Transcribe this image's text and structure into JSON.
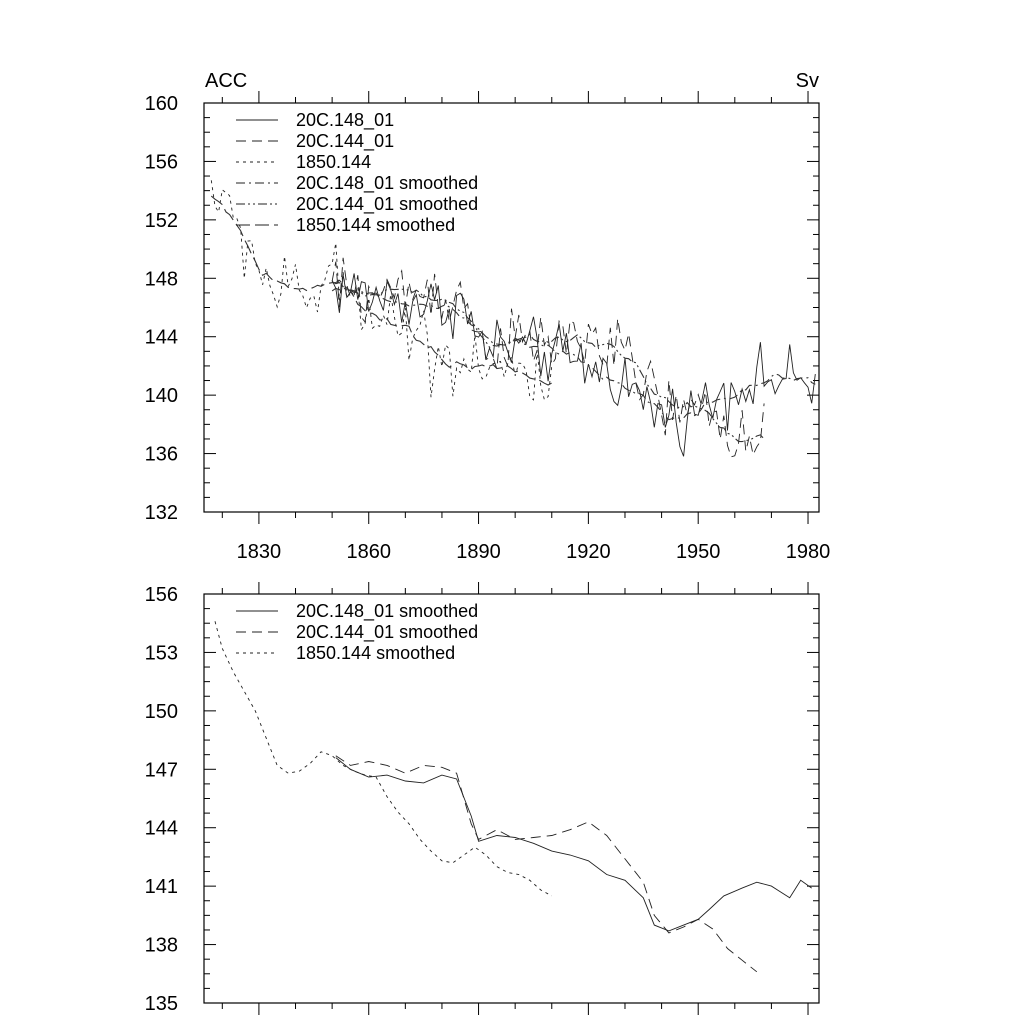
{
  "chart_data": [
    {
      "type": "line",
      "title_left": "ACC",
      "title_right": "Sv",
      "xlim": [
        1815,
        1983
      ],
      "ylim": [
        132,
        160
      ],
      "x_ticks": [
        1830,
        1860,
        1890,
        1920,
        1950,
        1980
      ],
      "y_ticks": [
        132,
        136,
        140,
        144,
        148,
        152,
        156,
        160
      ],
      "x_tick_labels_visible": true,
      "legend_position": "top-left",
      "series": [
        {
          "name": "20C.148_01",
          "dash": "solid",
          "x_start": 1850,
          "x_end": 1982,
          "trend": [
            [
              1850,
              147.5
            ],
            [
              1860,
              146.8
            ],
            [
              1870,
              146.5
            ],
            [
              1880,
              146.0
            ],
            [
              1885,
              146.5
            ],
            [
              1890,
              143.5
            ],
            [
              1900,
              143.2
            ],
            [
              1910,
              142.8
            ],
            [
              1920,
              142.0
            ],
            [
              1930,
              141.0
            ],
            [
              1935,
              139.5
            ],
            [
              1940,
              138.8
            ],
            [
              1945,
              138.5
            ],
            [
              1950,
              139.0
            ],
            [
              1955,
              140.0
            ],
            [
              1960,
              140.7
            ],
            [
              1970,
              141.2
            ],
            [
              1980,
              140.8
            ]
          ],
          "noise": 1.5
        },
        {
          "name": "20C.144_01",
          "dash": "long-dash",
          "x_start": 1850,
          "x_end": 1968,
          "trend": [
            [
              1850,
              147.5
            ],
            [
              1860,
              146.8
            ],
            [
              1870,
              147.2
            ],
            [
              1880,
              147.0
            ],
            [
              1885,
              146.8
            ],
            [
              1890,
              143.8
            ],
            [
              1900,
              143.5
            ],
            [
              1910,
              143.5
            ],
            [
              1920,
              144.0
            ],
            [
              1930,
              142.5
            ],
            [
              1940,
              139.5
            ],
            [
              1945,
              138.5
            ],
            [
              1950,
              139.0
            ],
            [
              1955,
              138.5
            ],
            [
              1960,
              137.5
            ],
            [
              1968,
              136.5
            ]
          ],
          "noise": 1.6
        },
        {
          "name": "1850.144",
          "dash": "short-dash",
          "x_start": 1817,
          "x_end": 1910,
          "trend": [
            [
              1817,
              154.5
            ],
            [
              1822,
              152.0
            ],
            [
              1828,
              150.0
            ],
            [
              1833,
              147.5
            ],
            [
              1838,
              146.8
            ],
            [
              1845,
              147.0
            ],
            [
              1850,
              147.8
            ],
            [
              1855,
              147.0
            ],
            [
              1860,
              146.5
            ],
            [
              1865,
              145.5
            ],
            [
              1870,
              144.8
            ],
            [
              1875,
              143.5
            ],
            [
              1880,
              142.5
            ],
            [
              1885,
              142.3
            ],
            [
              1890,
              142.8
            ],
            [
              1895,
              142.0
            ],
            [
              1900,
              141.5
            ],
            [
              1905,
              140.8
            ],
            [
              1910,
              140.5
            ]
          ],
          "noise": 1.8
        },
        {
          "name": "20C.148_01 smoothed",
          "dash": "dash-dot",
          "x_start": 1850,
          "x_end": 1982,
          "smooth_of": "20C.148_01"
        },
        {
          "name": "20C.144_01 smoothed",
          "dash": "dash-dot-dot",
          "x_start": 1850,
          "x_end": 1968,
          "smooth_of": "20C.144_01"
        },
        {
          "name": "1850.144 smoothed",
          "dash": "long-dash-2",
          "x_start": 1817,
          "x_end": 1910,
          "smooth_of": "1850.144"
        }
      ]
    },
    {
      "type": "line",
      "xlim": [
        1815,
        1983
      ],
      "ylim": [
        135,
        156
      ],
      "x_ticks": [
        1830,
        1860,
        1890,
        1920,
        1950,
        1980
      ],
      "y_ticks": [
        135,
        138,
        141,
        144,
        147,
        150,
        153,
        156
      ],
      "x_tick_labels_visible": false,
      "legend_position": "top-left",
      "series": [
        {
          "name": "20C.148_01 smoothed",
          "dash": "solid",
          "points": [
            [
              1851,
              147.6
            ],
            [
              1855,
              147.0
            ],
            [
              1860,
              146.6
            ],
            [
              1865,
              146.7
            ],
            [
              1870,
              146.4
            ],
            [
              1875,
              146.3
            ],
            [
              1880,
              146.7
            ],
            [
              1884,
              146.5
            ],
            [
              1888,
              144.6
            ],
            [
              1890,
              143.3
            ],
            [
              1895,
              143.6
            ],
            [
              1900,
              143.5
            ],
            [
              1905,
              143.2
            ],
            [
              1910,
              142.8
            ],
            [
              1915,
              142.6
            ],
            [
              1920,
              142.3
            ],
            [
              1925,
              141.6
            ],
            [
              1930,
              141.3
            ],
            [
              1935,
              140.4
            ],
            [
              1938,
              139.0
            ],
            [
              1942,
              138.7
            ],
            [
              1946,
              139.0
            ],
            [
              1950,
              139.3
            ],
            [
              1953,
              139.8
            ],
            [
              1957,
              140.5
            ],
            [
              1962,
              140.9
            ],
            [
              1966,
              141.2
            ],
            [
              1970,
              141.0
            ],
            [
              1975,
              140.4
            ],
            [
              1978,
              141.3
            ],
            [
              1981,
              140.9
            ]
          ]
        },
        {
          "name": "20C.144_01 smoothed",
          "dash": "long-dash",
          "points": [
            [
              1851,
              147.7
            ],
            [
              1855,
              147.2
            ],
            [
              1860,
              147.4
            ],
            [
              1865,
              147.2
            ],
            [
              1870,
              146.8
            ],
            [
              1875,
              147.2
            ],
            [
              1880,
              147.1
            ],
            [
              1884,
              146.8
            ],
            [
              1888,
              144.2
            ],
            [
              1890,
              143.4
            ],
            [
              1895,
              143.9
            ],
            [
              1900,
              143.4
            ],
            [
              1905,
              143.5
            ],
            [
              1910,
              143.6
            ],
            [
              1915,
              143.9
            ],
            [
              1920,
              144.3
            ],
            [
              1925,
              143.6
            ],
            [
              1930,
              142.4
            ],
            [
              1935,
              141.2
            ],
            [
              1938,
              139.5
            ],
            [
              1942,
              138.6
            ],
            [
              1946,
              138.9
            ],
            [
              1950,
              139.3
            ],
            [
              1954,
              138.8
            ],
            [
              1958,
              137.8
            ],
            [
              1962,
              137.2
            ],
            [
              1966,
              136.6
            ]
          ]
        },
        {
          "name": "1850.144 smoothed",
          "dash": "short-dash",
          "points": [
            [
              1818,
              154.6
            ],
            [
              1820,
              153.2
            ],
            [
              1823,
              152.0
            ],
            [
              1826,
              151.0
            ],
            [
              1829,
              150.0
            ],
            [
              1832,
              148.6
            ],
            [
              1835,
              147.2
            ],
            [
              1838,
              146.8
            ],
            [
              1841,
              146.9
            ],
            [
              1844,
              147.3
            ],
            [
              1847,
              147.9
            ],
            [
              1850,
              147.7
            ],
            [
              1853,
              147.2
            ],
            [
              1856,
              146.9
            ],
            [
              1859,
              146.7
            ],
            [
              1862,
              146.6
            ],
            [
              1865,
              145.6
            ],
            [
              1868,
              144.8
            ],
            [
              1871,
              144.2
            ],
            [
              1874,
              143.4
            ],
            [
              1877,
              142.8
            ],
            [
              1880,
              142.3
            ],
            [
              1883,
              142.2
            ],
            [
              1886,
              142.6
            ],
            [
              1889,
              143.0
            ],
            [
              1892,
              142.6
            ],
            [
              1895,
              142.0
            ],
            [
              1898,
              141.7
            ],
            [
              1901,
              141.6
            ],
            [
              1904,
              141.3
            ],
            [
              1907,
              140.8
            ],
            [
              1910,
              140.5
            ]
          ]
        }
      ]
    }
  ]
}
